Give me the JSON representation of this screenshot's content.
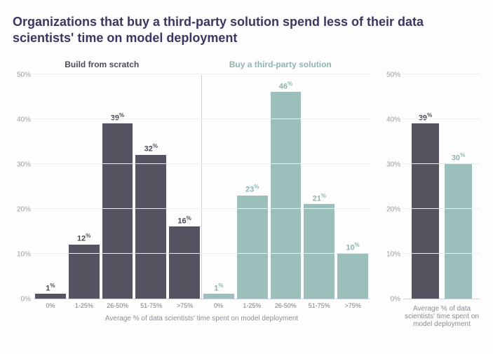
{
  "title": "Organizations that buy a third-party solution spend less of their data scientists' time on model deployment",
  "colors": {
    "build": "#54535f",
    "buy": "#9bc0bb",
    "build_label": "#4c4c57",
    "buy_label": "#8fb4af",
    "grid": "#ececf1",
    "axis": "#d0d0d8",
    "tick_text": "#9a9aa5"
  },
  "ylim": [
    0,
    50
  ],
  "ytick_step": 10,
  "yticks": [
    0,
    10,
    20,
    30,
    40,
    50
  ],
  "main": {
    "type": "bar",
    "left_title": "Build from scratch",
    "right_title": "Buy a third-party solution",
    "categories": [
      "0%",
      "1-25%",
      "26-50%",
      "51-75%",
      ">75%"
    ],
    "series": [
      {
        "name": "build",
        "color_key": "build",
        "label_color_key": "build_label",
        "values": [
          1,
          12,
          39,
          32,
          16
        ]
      },
      {
        "name": "buy",
        "color_key": "buy",
        "label_color_key": "buy_label",
        "values": [
          1,
          23,
          46,
          21,
          10
        ]
      }
    ],
    "x_caption": "Average % of data scientists' time spent on model deployment"
  },
  "summary": {
    "type": "bar",
    "bars": [
      {
        "name": "build",
        "value": 39,
        "color_key": "build",
        "label_color_key": "build_label"
      },
      {
        "name": "buy",
        "value": 30,
        "color_key": "buy",
        "label_color_key": "buy_label"
      }
    ],
    "x_caption": "Average % of data scientists' time spent on model deployment"
  }
}
